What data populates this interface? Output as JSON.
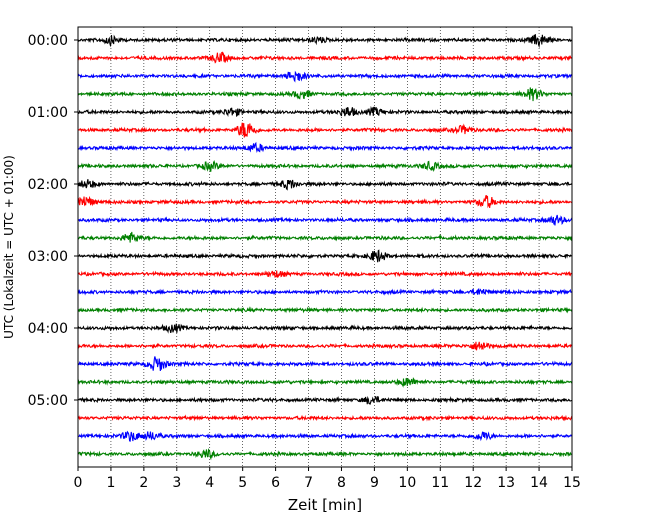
{
  "chart_data": {
    "type": "line",
    "subtype": "helicorder",
    "xlabel": "Zeit  [min]",
    "ylabel": "UTC (Lokalzeit = UTC + 01:00)",
    "xlim": [
      0,
      15
    ],
    "x_ticks": [
      0,
      1,
      2,
      3,
      4,
      5,
      6,
      7,
      8,
      9,
      10,
      11,
      12,
      13,
      14,
      15
    ],
    "y_tick_labels": [
      "00:00",
      "01:00",
      "02:00",
      "03:00",
      "04:00",
      "05:00"
    ],
    "trace_count": 24,
    "trace_interval_min": 15,
    "trace_colors": [
      "#000000",
      "#ff0000",
      "#0000ff",
      "#008000"
    ],
    "vertical_grid": "dotted",
    "events": [
      {
        "trace": 0,
        "min": 1.0,
        "amp": 0.4
      },
      {
        "trace": 0,
        "min": 7.3,
        "amp": 0.3
      },
      {
        "trace": 0,
        "min": 14.0,
        "amp": 0.6
      },
      {
        "trace": 1,
        "min": 4.3,
        "amp": 0.5
      },
      {
        "trace": 2,
        "min": 6.6,
        "amp": 0.6
      },
      {
        "trace": 3,
        "min": 6.8,
        "amp": 0.4
      },
      {
        "trace": 3,
        "min": 13.8,
        "amp": 0.6
      },
      {
        "trace": 4,
        "min": 4.7,
        "amp": 0.4
      },
      {
        "trace": 4,
        "min": 8.2,
        "amp": 0.5
      },
      {
        "trace": 4,
        "min": 9.0,
        "amp": 0.4
      },
      {
        "trace": 5,
        "min": 5.1,
        "amp": 0.9
      },
      {
        "trace": 5,
        "min": 11.7,
        "amp": 0.4
      },
      {
        "trace": 6,
        "min": 5.4,
        "amp": 0.4
      },
      {
        "trace": 7,
        "min": 4.0,
        "amp": 0.4
      },
      {
        "trace": 7,
        "min": 10.7,
        "amp": 0.4
      },
      {
        "trace": 8,
        "min": 0.3,
        "amp": 0.4
      },
      {
        "trace": 8,
        "min": 6.4,
        "amp": 0.5
      },
      {
        "trace": 9,
        "min": 0.2,
        "amp": 0.6
      },
      {
        "trace": 9,
        "min": 12.4,
        "amp": 0.6
      },
      {
        "trace": 10,
        "min": 14.5,
        "amp": 0.5
      },
      {
        "trace": 11,
        "min": 1.6,
        "amp": 0.5
      },
      {
        "trace": 12,
        "min": 9.1,
        "amp": 0.6
      },
      {
        "trace": 13,
        "min": 6.0,
        "amp": 0.3
      },
      {
        "trace": 14,
        "min": 12.2,
        "amp": 0.3
      },
      {
        "trace": 16,
        "min": 2.9,
        "amp": 0.4
      },
      {
        "trace": 17,
        "min": 12.2,
        "amp": 0.5
      },
      {
        "trace": 18,
        "min": 2.4,
        "amp": 0.8
      },
      {
        "trace": 19,
        "min": 10.0,
        "amp": 0.4
      },
      {
        "trace": 20,
        "min": 8.9,
        "amp": 0.4
      },
      {
        "trace": 22,
        "min": 1.6,
        "amp": 0.5
      },
      {
        "trace": 22,
        "min": 2.2,
        "amp": 0.4
      },
      {
        "trace": 22,
        "min": 12.3,
        "amp": 0.4
      },
      {
        "trace": 23,
        "min": 3.9,
        "amp": 0.4
      }
    ]
  }
}
